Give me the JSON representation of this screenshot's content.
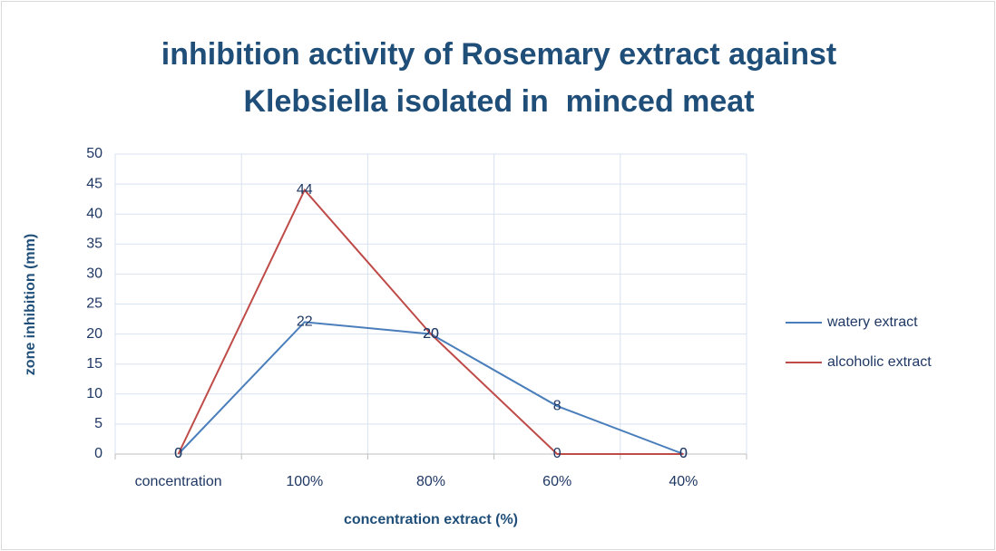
{
  "chart_data": {
    "type": "line",
    "title": [
      "inhibition activity of Rosemary extract against",
      "Klebsiella isolated in  minced meat"
    ],
    "x_label": "concentration extract (%)",
    "y_label": "zone inhibition (mm)",
    "categories": [
      "concentration",
      "100%",
      "80%",
      "60%",
      "40%"
    ],
    "series": [
      {
        "name": "watery extract",
        "color": "#4a7ebb",
        "values": [
          0,
          22,
          20,
          8,
          0
        ]
      },
      {
        "name": "alcoholic extract",
        "color": "#be4b48",
        "values": [
          0,
          44,
          20,
          0,
          0
        ]
      }
    ],
    "ylim": [
      0,
      50
    ],
    "yticks": [
      0,
      5,
      10,
      15,
      20,
      25,
      30,
      35,
      40,
      45,
      50
    ],
    "grid": true,
    "legend": "right",
    "data_labels": true
  }
}
